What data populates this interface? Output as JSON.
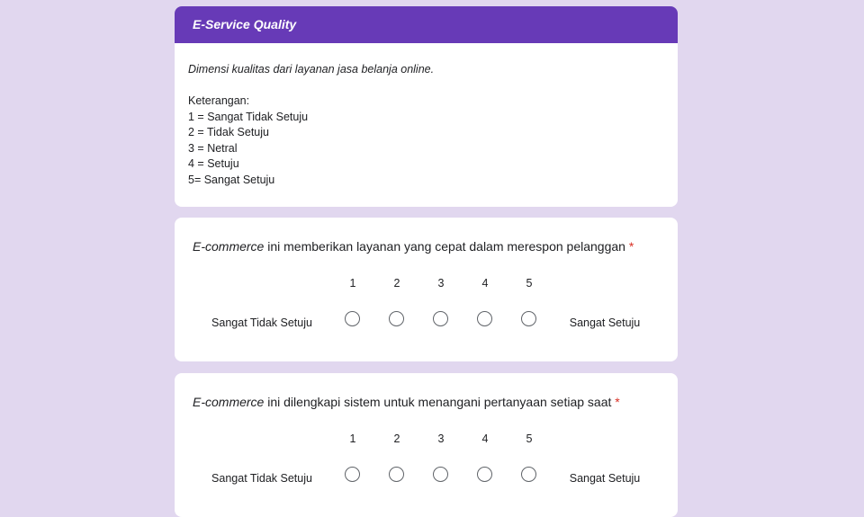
{
  "section": {
    "title": "E-Service Quality",
    "description": "Dimensi kualitas dari layanan jasa belanja online.",
    "legend_heading": "Keterangan:",
    "legend": [
      "1 = Sangat Tidak Setuju",
      "2 = Tidak Setuju",
      "3 = Netral",
      "4 = Setuju",
      "5= Sangat Setuju"
    ]
  },
  "questions": [
    {
      "term": "E-commerce",
      "text": " ini memberikan layanan yang cepat dalam merespon pelanggan",
      "required": "*",
      "scale": [
        "1",
        "2",
        "3",
        "4",
        "5"
      ],
      "low_label": "Sangat Tidak Setuju",
      "high_label": "Sangat Setuju"
    },
    {
      "term": "E-commerce",
      "text": " ini dilengkapi sistem untuk menangani pertanyaan setiap saat",
      "required": "*",
      "scale": [
        "1",
        "2",
        "3",
        "4",
        "5"
      ],
      "low_label": "Sangat Tidak Setuju",
      "high_label": "Sangat Setuju"
    }
  ],
  "colors": {
    "accent": "#673ab7",
    "background": "#e1d7ef",
    "required": "#d93025"
  }
}
